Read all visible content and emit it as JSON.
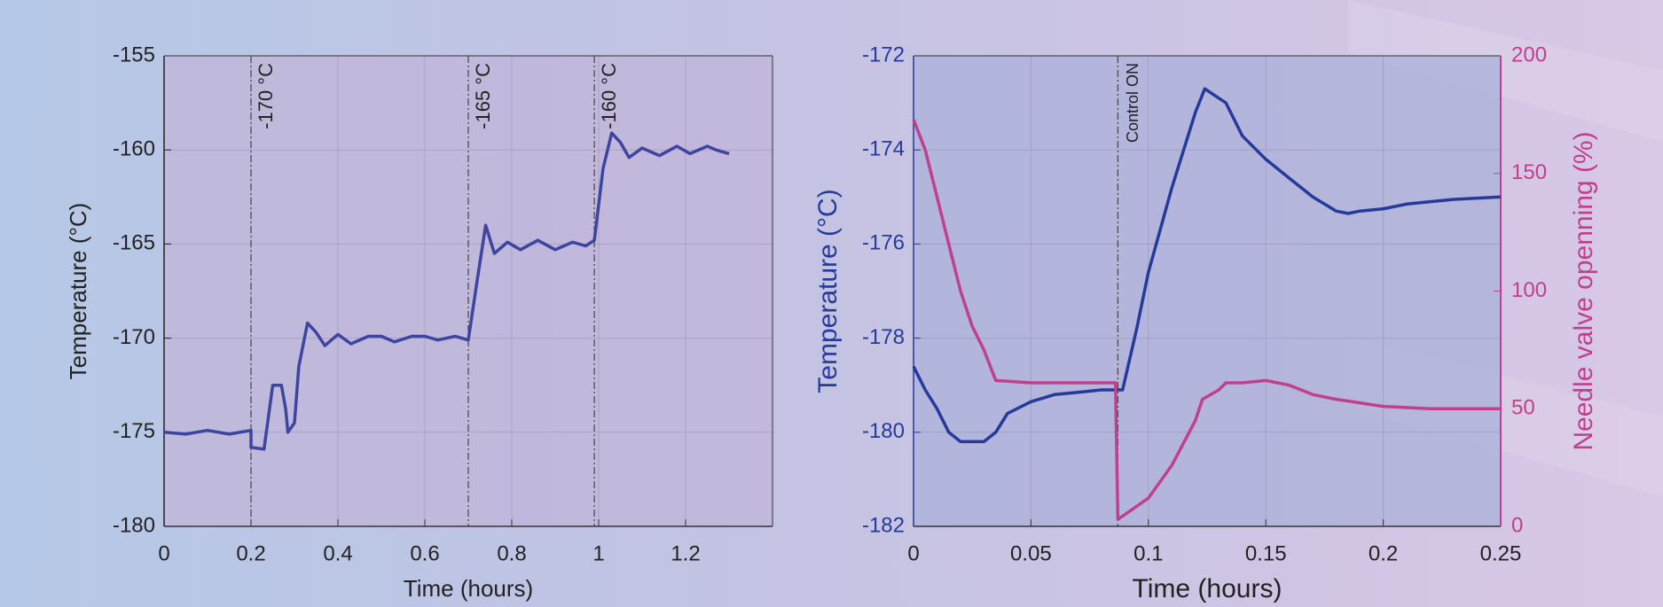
{
  "chart_data": [
    {
      "type": "line",
      "x_label": "Time (hours)",
      "y_label": "Temperature (°C)",
      "xlim": [
        0,
        1.4
      ],
      "xticks": [
        0,
        0.2,
        0.4,
        0.6,
        0.8,
        1,
        1.2
      ],
      "ylim": [
        -180,
        -155
      ],
      "yticks": [
        -180,
        -175,
        -170,
        -165,
        -160,
        -155
      ],
      "grid": true,
      "y_axis_color": "#222222",
      "annotations": [
        {
          "x": 0.2,
          "text": "-170 °C"
        },
        {
          "x": 0.7,
          "text": "-165 °C"
        },
        {
          "x": 0.99,
          "text": "-160 °C"
        }
      ],
      "series": [
        {
          "color": "#3d45a0",
          "x": [
            0,
            0.05,
            0.1,
            0.15,
            0.2,
            0.2,
            0.23,
            0.25,
            0.27,
            0.28,
            0.285,
            0.3,
            0.31,
            0.33,
            0.35,
            0.37,
            0.4,
            0.43,
            0.47,
            0.5,
            0.53,
            0.57,
            0.6,
            0.63,
            0.67,
            0.7,
            0.72,
            0.74,
            0.76,
            0.79,
            0.82,
            0.86,
            0.9,
            0.94,
            0.97,
            0.99,
            1.01,
            1.03,
            1.05,
            1.07,
            1.1,
            1.14,
            1.18,
            1.21,
            1.25,
            1.27,
            1.3
          ],
          "values": [
            -175,
            -175.1,
            -174.9,
            -175.1,
            -174.9,
            -175.8,
            -175.9,
            -172.5,
            -172.5,
            -173.8,
            -175,
            -174.5,
            -171.5,
            -169.2,
            -169.7,
            -170.4,
            -169.8,
            -170.3,
            -169.9,
            -169.9,
            -170.2,
            -169.9,
            -169.9,
            -170.1,
            -169.9,
            -170.1,
            -167,
            -164,
            -165.5,
            -164.9,
            -165.3,
            -164.8,
            -165.3,
            -164.9,
            -165.1,
            -164.8,
            -161,
            -159.1,
            -159.6,
            -160.4,
            -159.9,
            -160.3,
            -159.8,
            -160.2,
            -159.8,
            -160,
            -160.2
          ]
        }
      ]
    },
    {
      "type": "line",
      "x_label": "Time (hours)",
      "y_label": "Temperature (°C)",
      "y2_label": "Needle valve openning (%)",
      "xlim": [
        0,
        0.25
      ],
      "xticks": [
        0,
        0.05,
        0.1,
        0.15,
        0.2,
        0.25
      ],
      "ylim": [
        -182,
        -172
      ],
      "yticks": [
        -182,
        -180,
        -178,
        -176,
        -174,
        -172
      ],
      "y2lim": [
        0,
        200
      ],
      "y2ticks": [
        0,
        50,
        100,
        150,
        200
      ],
      "grid": true,
      "y_axis_color": "#263a9a",
      "y2_axis_color": "#c0408e",
      "annotations": [
        {
          "x": 0.087,
          "text": "Control ON"
        }
      ],
      "series": [
        {
          "color": "#263a9a",
          "x": [
            0,
            0.005,
            0.01,
            0.015,
            0.02,
            0.025,
            0.03,
            0.035,
            0.04,
            0.05,
            0.06,
            0.07,
            0.08,
            0.087,
            0.089,
            0.095,
            0.1,
            0.11,
            0.12,
            0.124,
            0.13,
            0.133,
            0.14,
            0.15,
            0.16,
            0.17,
            0.18,
            0.185,
            0.19,
            0.2,
            0.21,
            0.23,
            0.25
          ],
          "values": [
            -178.6,
            -179.1,
            -179.5,
            -180,
            -180.2,
            -180.2,
            -180.2,
            -180,
            -179.6,
            -179.35,
            -179.2,
            -179.15,
            -179.1,
            -179.1,
            -179.1,
            -177.8,
            -176.6,
            -174.8,
            -173.2,
            -172.7,
            -172.9,
            -173,
            -173.7,
            -174.2,
            -174.6,
            -175,
            -175.3,
            -175.35,
            -175.3,
            -175.25,
            -175.15,
            -175.05,
            -175
          ]
        },
        {
          "color": "#c0408e",
          "axis": "y2",
          "x": [
            0,
            0.005,
            0.01,
            0.015,
            0.02,
            0.025,
            0.03,
            0.035,
            0.05,
            0.07,
            0.086,
            0.087,
            0.09,
            0.1,
            0.11,
            0.12,
            0.123,
            0.13,
            0.133,
            0.14,
            0.15,
            0.16,
            0.17,
            0.18,
            0.2,
            0.22,
            0.25
          ],
          "values": [
            173,
            160,
            140,
            120,
            100,
            85,
            75,
            62,
            61,
            61,
            61,
            3,
            5,
            12,
            26,
            45,
            54,
            58,
            61,
            61,
            62,
            60,
            56,
            54,
            51,
            50,
            50
          ]
        }
      ]
    }
  ]
}
